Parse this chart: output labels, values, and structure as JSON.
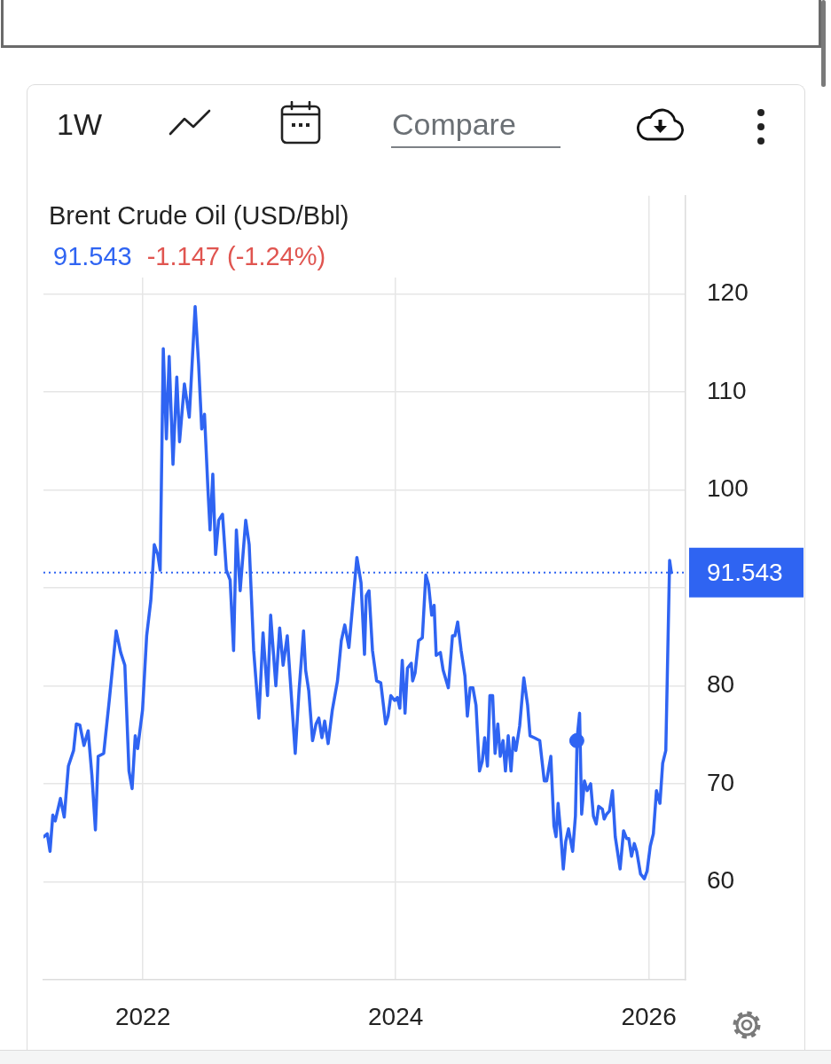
{
  "chart_data": {
    "type": "line",
    "title": "Brent Crude Oil (USD/Bbl)",
    "subtitle": "91.543",
    "annotations": [
      "1W",
      "Compare",
      "-1.147 (-1.24%)"
    ],
    "series": [
      {
        "color": "#2f64f2",
        "x": [
          "2021-03-21",
          "2021-03-31",
          "2021-04-08",
          "2021-04-16",
          "2021-04-23",
          "2021-05-08",
          "2021-05-19",
          "2021-05-31",
          "2021-06-15",
          "2021-06-23",
          "2021-07-03",
          "2021-07-15",
          "2021-07-27",
          "2021-08-07",
          "2021-08-17",
          "2021-08-25",
          "2021-09-10",
          "2021-09-26",
          "2021-10-16",
          "2021-10-29",
          "2021-11-10",
          "2021-11-22",
          "2021-12-01",
          "2021-12-10",
          "2021-12-17",
          "2021-12-31",
          "2022-01-12",
          "2022-01-24",
          "2022-02-03",
          "2022-02-13",
          "2022-02-20",
          "2022-03-01",
          "2022-03-10",
          "2022-03-18",
          "2022-03-29",
          "2022-04-09",
          "2022-04-17",
          "2022-05-01",
          "2022-05-15",
          "2022-06-01",
          "2022-06-11",
          "2022-06-20",
          "2022-06-28",
          "2022-07-08",
          "2022-07-14",
          "2022-07-22",
          "2022-07-30",
          "2022-08-08",
          "2022-08-19",
          "2022-08-30",
          "2022-09-10",
          "2022-09-20",
          "2022-09-28",
          "2022-10-09",
          "2022-10-25",
          "2022-11-04",
          "2022-11-17",
          "2022-12-02",
          "2022-12-14",
          "2022-12-27",
          "2023-01-05",
          "2023-01-20",
          "2023-01-31",
          "2023-02-10",
          "2023-02-22",
          "2023-03-17",
          "2023-03-28",
          "2023-04-10",
          "2023-04-16",
          "2023-04-25",
          "2023-05-06",
          "2023-05-16",
          "2023-05-24",
          "2023-06-02",
          "2023-06-10",
          "2023-06-20",
          "2023-07-02",
          "2023-07-17",
          "2023-07-28",
          "2023-08-07",
          "2023-08-19",
          "2023-08-31",
          "2023-09-11",
          "2023-09-23",
          "2023-10-03",
          "2023-10-08",
          "2023-10-16",
          "2023-10-26",
          "2023-11-07",
          "2023-11-19",
          "2023-12-03",
          "2023-12-10",
          "2023-12-18",
          "2023-12-29",
          "2024-01-06",
          "2024-01-13",
          "2024-01-20",
          "2024-01-28",
          "2024-02-04",
          "2024-02-15",
          "2024-02-19",
          "2024-02-26",
          "2024-03-07",
          "2024-03-18",
          "2024-03-28",
          "2024-04-05",
          "2024-04-14",
          "2024-04-21",
          "2024-04-27",
          "2024-05-09",
          "2024-05-17",
          "2024-06-01",
          "2024-06-13",
          "2024-06-20",
          "2024-06-28",
          "2024-07-08",
          "2024-07-19",
          "2024-07-26",
          "2024-08-03",
          "2024-08-11",
          "2024-08-20",
          "2024-08-30",
          "2024-09-07",
          "2024-09-14",
          "2024-09-22",
          "2024-09-29",
          "2024-10-07",
          "2024-10-14",
          "2024-10-22",
          "2024-10-29",
          "2024-11-06",
          "2024-11-13",
          "2024-11-21",
          "2024-11-29",
          "2024-12-06",
          "2024-12-13",
          "2024-12-24",
          "2025-01-05",
          "2025-01-16",
          "2025-01-23",
          "2025-02-04",
          "2025-02-20",
          "2025-03-05",
          "2025-03-12",
          "2025-03-24",
          "2025-04-02",
          "2025-04-08",
          "2025-04-14",
          "2025-04-21",
          "2025-04-29",
          "2025-05-06",
          "2025-05-14",
          "2025-05-26",
          "2025-06-03",
          "2025-06-08",
          "2025-06-15",
          "2025-06-21",
          "2025-06-29",
          "2025-07-07",
          "2025-07-17",
          "2025-07-25",
          "2025-08-02",
          "2025-08-09",
          "2025-08-20",
          "2025-08-25",
          "2025-09-01",
          "2025-09-09",
          "2025-09-18",
          "2025-09-26",
          "2025-10-10",
          "2025-10-20",
          "2025-10-29",
          "2025-11-04",
          "2025-11-12",
          "2025-11-20",
          "2025-11-27",
          "2025-12-08",
          "2025-12-19",
          "2025-12-27",
          "2026-01-05",
          "2026-01-14",
          "2026-01-23",
          "2026-02-02",
          "2026-02-10",
          "2026-02-19",
          "2026-03-02",
          "2026-03-07"
        ],
        "values": [
          64.6,
          64.9,
          63.1,
          66.8,
          66.2,
          68.5,
          66.6,
          71.8,
          73.4,
          76.1,
          76.0,
          73.9,
          75.4,
          70.8,
          65.3,
          72.8,
          73.1,
          78.5,
          85.6,
          83.4,
          82.1,
          71.3,
          69.5,
          74.9,
          73.6,
          77.5,
          85.1,
          88.7,
          94.4,
          93.4,
          91.8,
          114.4,
          105.2,
          113.6,
          102.6,
          111.5,
          104.9,
          110.8,
          107.4,
          118.7,
          112.8,
          106.2,
          107.7,
          100.0,
          95.9,
          101.6,
          93.4,
          96.9,
          97.5,
          91.8,
          90.8,
          83.6,
          95.9,
          89.7,
          96.9,
          94.4,
          83.6,
          76.7,
          85.4,
          79.0,
          87.2,
          80.0,
          85.9,
          82.1,
          85.1,
          73.1,
          79.5,
          85.6,
          81.6,
          79.5,
          74.4,
          76.1,
          76.7,
          74.7,
          76.4,
          74.1,
          77.5,
          80.5,
          84.6,
          86.2,
          83.9,
          88.7,
          93.1,
          90.5,
          83.2,
          89.2,
          89.7,
          83.6,
          80.5,
          80.3,
          76.1,
          76.9,
          79.0,
          78.5,
          78.8,
          77.7,
          82.6,
          77.2,
          81.8,
          82.3,
          80.5,
          81.3,
          84.6,
          84.9,
          91.3,
          90.3,
          87.2,
          88.2,
          83.1,
          83.4,
          81.6,
          79.8,
          85.1,
          85.1,
          86.5,
          83.6,
          81.0,
          76.9,
          79.8,
          79.8,
          78.0,
          71.3,
          72.3,
          74.7,
          71.8,
          79.0,
          79.0,
          73.1,
          76.1,
          72.8,
          74.4,
          71.3,
          74.9,
          71.3,
          74.7,
          73.4,
          75.9,
          80.8,
          78.0,
          74.9,
          74.7,
          74.4,
          70.3,
          70.3,
          72.8,
          65.7,
          64.6,
          68.0,
          65.2,
          61.3,
          64.1,
          65.4,
          63.1,
          66.7,
          74.7,
          77.2,
          66.9,
          70.3,
          69.3,
          70.0,
          66.7,
          65.9,
          67.7,
          67.4,
          66.4,
          66.9,
          67.2,
          69.3,
          64.6,
          61.3,
          65.2,
          64.4,
          64.4,
          62.6,
          63.9,
          63.1,
          60.8,
          60.3,
          61.1,
          63.6,
          64.9,
          69.3,
          68.0,
          72.1,
          73.4,
          92.8,
          91.543
        ]
      },
      {
        "type": "scatter",
        "color": "#2f64f2",
        "marker": "circle",
        "x": [
          "2025-06-07"
        ],
        "values": [
          74.4
        ]
      }
    ],
    "xlim": [
      "2021-03-20",
      "2026-04-17"
    ],
    "xticks": [
      "2022",
      "2024",
      "2026"
    ],
    "ylim": [
      50,
      130
    ],
    "yticks": [
      60,
      70,
      80,
      {
        "value": 90,
        "label": null
      },
      100,
      110,
      120
    ],
    "grid": true,
    "ref_lines": [
      {
        "axis": "y",
        "value": 91.543,
        "label": "91.543",
        "color": "#2f64f2",
        "line_style": "dotted"
      }
    ]
  }
}
